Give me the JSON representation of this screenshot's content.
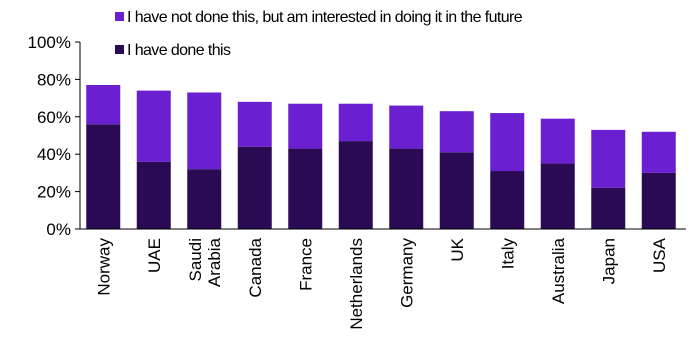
{
  "chart_data": {
    "type": "bar",
    "stacked": true,
    "categories": [
      "Norway",
      "UAE",
      "Saudi\nArabia",
      "Canada",
      "France",
      "Netherlands",
      "Germany",
      "UK",
      "Italy",
      "Australia",
      "Japan",
      "USA"
    ],
    "series": [
      {
        "name": "I have done this",
        "color": "#2a0a52",
        "values": [
          56,
          36,
          32,
          44,
          43,
          47,
          43,
          41,
          31,
          35,
          22,
          30
        ]
      },
      {
        "name": "I have not done this, but am interested in doing it in the future",
        "color": "#6a1fd0",
        "values": [
          21,
          38,
          41,
          24,
          24,
          20,
          23,
          22,
          31,
          24,
          31,
          22
        ]
      }
    ],
    "legend_order": [
      1,
      0
    ],
    "legend_position": "top",
    "ylim": [
      0,
      100
    ],
    "yticks": [
      "0%",
      "20%",
      "40%",
      "60%",
      "80%",
      "100%"
    ],
    "grid": false
  }
}
